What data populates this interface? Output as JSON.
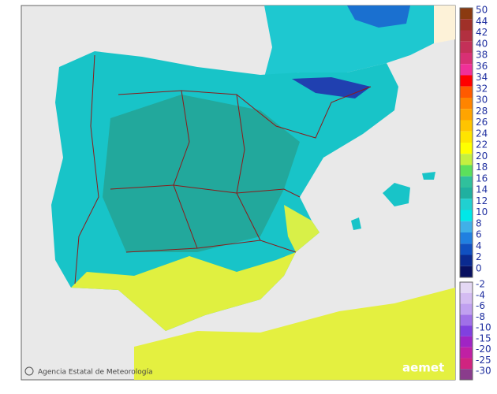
{
  "credit": "Agencia Estatal de Meteorología",
  "logo": "aemet",
  "legend": {
    "upper": [
      {
        "label": 50,
        "color": "#8b3a10"
      },
      {
        "label": 44,
        "color": "#a03028"
      },
      {
        "label": 42,
        "color": "#b23040"
      },
      {
        "label": 40,
        "color": "#c43058"
      },
      {
        "label": 38,
        "color": "#d83074"
      },
      {
        "label": 36,
        "color": "#f03098"
      },
      {
        "label": 34,
        "color": "#ff0000"
      },
      {
        "label": 32,
        "color": "#ff5a00"
      },
      {
        "label": 30,
        "color": "#ff8400"
      },
      {
        "label": 28,
        "color": "#ffa400"
      },
      {
        "label": 26,
        "color": "#ffc400"
      },
      {
        "label": 24,
        "color": "#ffe400"
      },
      {
        "label": 22,
        "color": "#ffff00"
      },
      {
        "label": 20,
        "color": "#c4f040"
      },
      {
        "label": 18,
        "color": "#5ce05c"
      },
      {
        "label": 16,
        "color": "#30c09c"
      },
      {
        "label": 14,
        "color": "#20b0a0"
      },
      {
        "label": 12,
        "color": "#20d0d0"
      },
      {
        "label": 10,
        "color": "#00e8e8"
      },
      {
        "label": 8,
        "color": "#40b0e8"
      },
      {
        "label": 6,
        "color": "#2080e0"
      },
      {
        "label": 4,
        "color": "#1050c0"
      },
      {
        "label": 2,
        "color": "#0a2a90"
      },
      {
        "label": 0,
        "color": "#081060"
      }
    ],
    "lower": [
      {
        "label": -2,
        "color": "#e4d8f4"
      },
      {
        "label": -4,
        "color": "#d4bcf2"
      },
      {
        "label": -6,
        "color": "#c0a0f0"
      },
      {
        "label": -8,
        "color": "#a070e8"
      },
      {
        "label": -10,
        "color": "#8040e0"
      },
      {
        "label": -15,
        "color": "#a024c4"
      },
      {
        "label": -20,
        "color": "#c020a4"
      },
      {
        "label": -25,
        "color": "#d02480"
      },
      {
        "label": -30,
        "color": "#8a3c8c"
      }
    ]
  }
}
